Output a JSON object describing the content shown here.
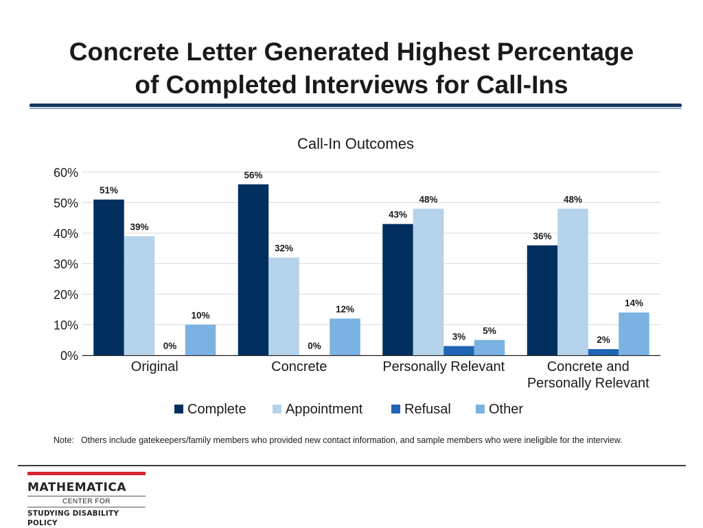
{
  "slide": {
    "title_line1": "Concrete Letter Generated Highest Percentage",
    "title_line2": "of Completed Interviews for Call-Ins"
  },
  "chart_data": {
    "type": "bar",
    "title": "Call-In Outcomes",
    "categories": [
      "Original",
      "Concrete",
      "Personally Relevant",
      "Concrete and Personally Relevant"
    ],
    "category_lines": [
      [
        "Original"
      ],
      [
        "Concrete"
      ],
      [
        "Personally Relevant"
      ],
      [
        "Concrete and",
        "Personally Relevant"
      ]
    ],
    "series": [
      {
        "name": "Complete",
        "values": [
          51,
          56,
          43,
          36
        ],
        "color": "#002f5f"
      },
      {
        "name": "Appointment",
        "values": [
          39,
          32,
          48,
          48
        ],
        "color": "#b5d3ea"
      },
      {
        "name": "Refusal",
        "values": [
          0,
          0,
          3,
          2
        ],
        "color": "#1f64b5"
      },
      {
        "name": "Other",
        "values": [
          10,
          12,
          5,
          14
        ],
        "color": "#7ab3e1"
      }
    ],
    "data_labels": [
      [
        "51%",
        "56%",
        "43%",
        "36%"
      ],
      [
        "39%",
        "32%",
        "48%",
        "48%"
      ],
      [
        "0%",
        "0%",
        "3%",
        "2%"
      ],
      [
        "10%",
        "12%",
        "5%",
        "14%"
      ]
    ],
    "y_ticks": [
      "0%",
      "10%",
      "20%",
      "30%",
      "40%",
      "50%",
      "60%"
    ],
    "ylim": [
      0,
      60
    ],
    "grid": true,
    "legend_position": "bottom",
    "xlabel": "",
    "ylabel": ""
  },
  "note": {
    "label": "Note:",
    "text": "Others include gatekeepers/family members who provided new contact information, and sample members who were ineligible for the interview."
  },
  "logo": {
    "name": "MATHEMATICA",
    "center": "CENTER FOR",
    "sub": "STUDYING DISABILITY POLICY",
    "accent_color": "#d7262f"
  }
}
